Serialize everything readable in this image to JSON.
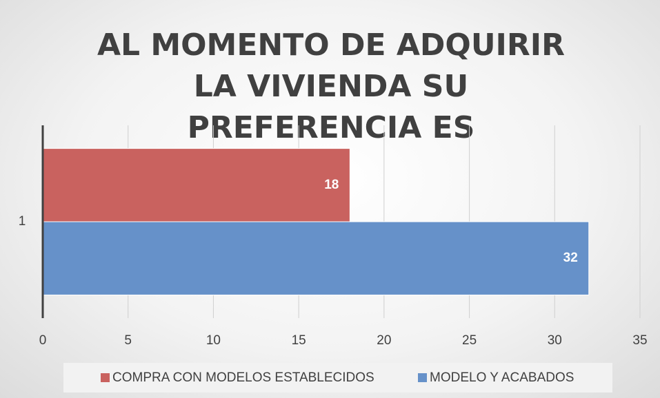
{
  "chart_data": {
    "type": "bar",
    "orientation": "horizontal",
    "title": "AL MOMENTO DE ADQUIRIR LA VIVIENDA SU PREFERENCIA ES",
    "categories": [
      "1"
    ],
    "series": [
      {
        "name": "COMPRA CON MODELOS ESTABLECIDOS",
        "color": "#c9625f",
        "values": [
          18
        ]
      },
      {
        "name": "MODELO Y ACABADOS",
        "color": "#6691c9",
        "values": [
          32
        ]
      }
    ],
    "xlim": [
      0,
      35
    ],
    "xticks": [
      0,
      5,
      10,
      15,
      20,
      25,
      30,
      35
    ],
    "grid": true,
    "legend": "bottom"
  }
}
